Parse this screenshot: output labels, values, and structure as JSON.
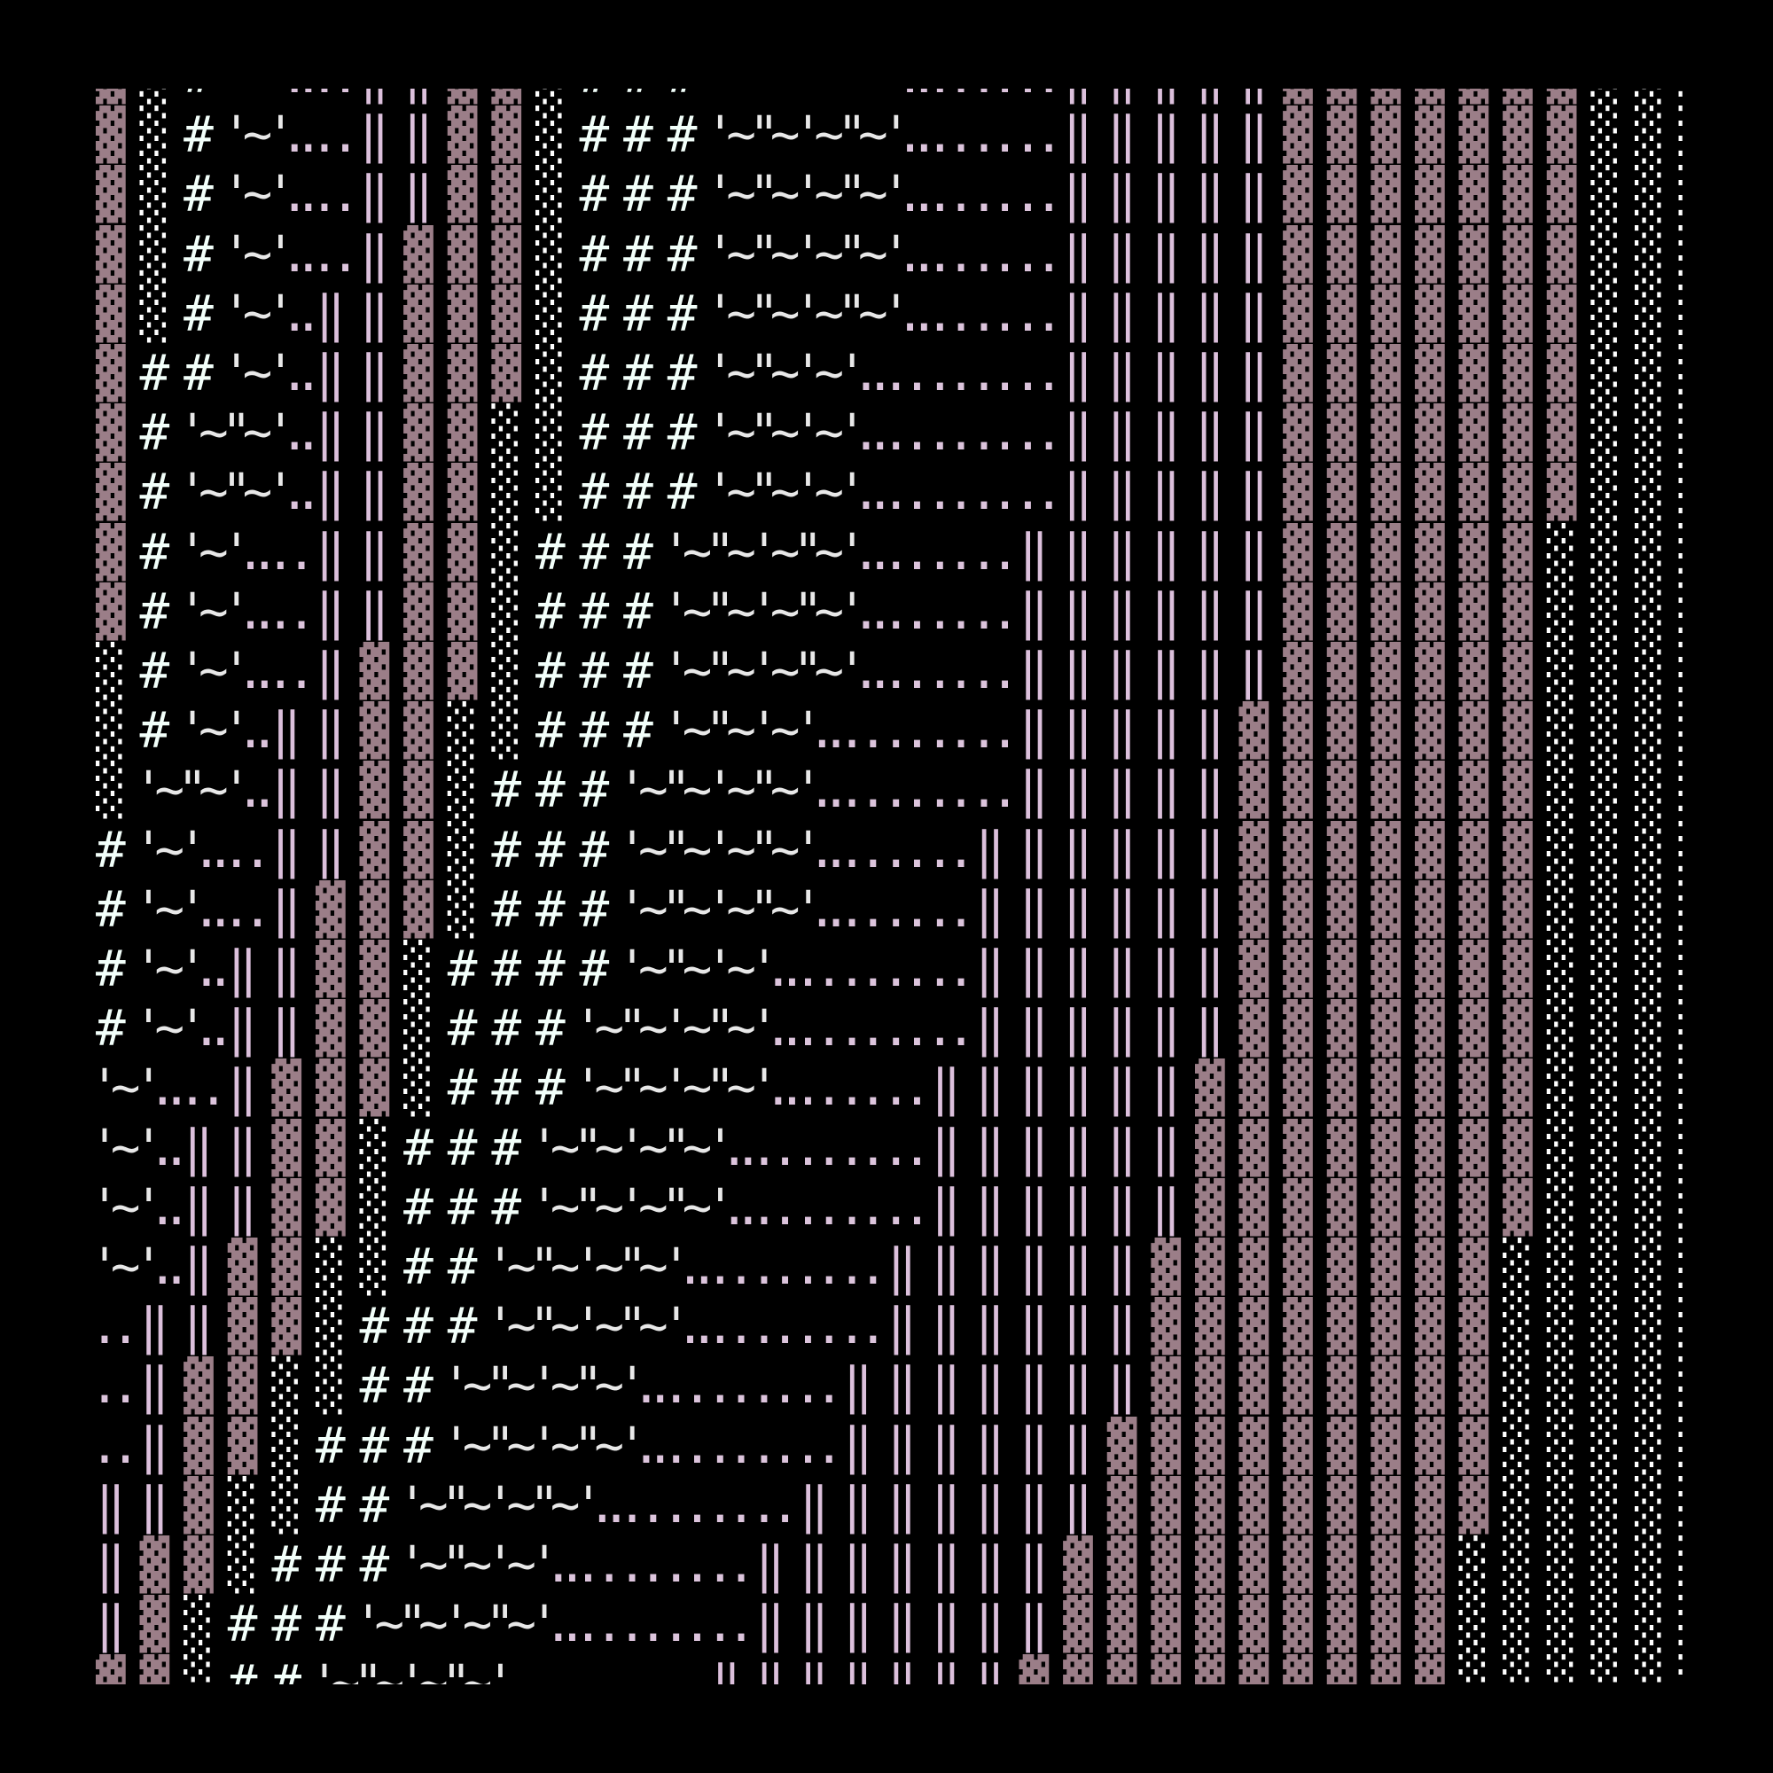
{
  "colors": {
    "background": "#000000",
    "dark_shade": "#9b7e88",
    "light_shade": "#ffffff",
    "hash": "#f2fffa",
    "tick": "#e8e8e8",
    "dots": "#dcc4dc",
    "double_bar": "#dcc0dc"
  },
  "rows": [
    "▓ ░ # '~ '.. .. ‖ ‖ ▓ ▓ ░ # # # '~ \"~ '~ \"~ '.. .. .. .. ‖ ‖ ‖ ‖ ‖ ▓ ▓ ▓ ▓ ▓ ▓ ▓ ░ ░ ░",
    "▓ ░ # '~ '.. .. ‖ ‖ ▓ ▓ ░ # # # '~ \"~ '~ \"~ '.. .. .. .. ‖ ‖ ‖ ‖ ‖ ▓ ▓ ▓ ▓ ▓ ▓ ▓ ░ ░ ░",
    "▓ ░ # '~ '.. .. ‖ ‖ ▓ ▓ ░ # # # '~ \"~ '~ \"~ '.. .. .. .. ‖ ‖ ‖ ‖ ‖ ▓ ▓ ▓ ▓ ▓ ▓ ▓ ░ ░ ░",
    "▓ ░ # '~ '.. .. ‖ ▓ ▓ ▓ ░ # # # '~ \"~ '~ \"~ '.. .. .. .. ‖ ‖ ‖ ‖ ‖ ▓ ▓ ▓ ▓ ▓ ▓ ▓ ░ ░ ░",
    "▓ ░ # '~ '.. ‖ ‖ ▓ ▓ ▓ ░ # # # '~ \"~ '~ \"~ '.. .. .. .. ‖ ‖ ‖ ‖ ‖ ▓ ▓ ▓ ▓ ▓ ▓ ▓ ░ ░ ░",
    "▓ # # '~ '.. ‖ ‖ ▓ ▓ ▓ ░ # # # '~ \"~ '~ '.. .. .. .. .. ‖ ‖ ‖ ‖ ‖ ▓ ▓ ▓ ▓ ▓ ▓ ▓ ░ ░ ░",
    "▓ # '~ \"~ '.. ‖ ‖ ▓ ▓ ░ ░ # # # '~ \"~ '~ '.. .. .. .. .. ‖ ‖ ‖ ‖ ‖ ▓ ▓ ▓ ▓ ▓ ▓ ▓ ░ ░ ░",
    "▓ # '~ \"~ '.. ‖ ‖ ▓ ▓ ░ ░ # # # '~ \"~ '~ '.. .. .. .. .. ‖ ‖ ‖ ‖ ‖ ▓ ▓ ▓ ▓ ▓ ▓ ▓ ░ ░ ░",
    "▓ # '~ '.. .. ‖ ‖ ▓ ▓ ░ # # # '~ \"~ '~ \"~ '.. .. .. .. ‖ ‖ ‖ ‖ ‖ ‖ ▓ ▓ ▓ ▓ ▓ ▓ ░ ░ ░ ░",
    "▓ # '~ '.. .. ‖ ‖ ▓ ▓ ░ # # # '~ \"~ '~ \"~ '.. .. .. .. ‖ ‖ ‖ ‖ ‖ ‖ ▓ ▓ ▓ ▓ ▓ ▓ ░ ░ ░ ░",
    "░ # '~ '.. .. ‖ ▓ ▓ ▓ ░ # # # '~ \"~ '~ \"~ '.. .. .. .. ‖ ‖ ‖ ‖ ‖ ‖ ▓ ▓ ▓ ▓ ▓ ▓ ░ ░ ░ ░",
    "░ # '~ '.. ‖ ‖ ▓ ▓ ░ ░ # # # '~ \"~ '~ '.. .. .. .. .. ‖ ‖ ‖ ‖ ‖ ▓ ▓ ▓ ▓ ▓ ▓ ▓ ░ ░ ░ ░",
    "░ '~ \"~ '.. ‖ ‖ ▓ ▓ ░ # # # '~ \"~ '~ \"~ '.. .. .. .. .. ‖ ‖ ‖ ‖ ‖ ▓ ▓ ▓ ▓ ▓ ▓ ▓ ░ ░ ░ ░",
    "# '~ '.. .. ‖ ‖ ▓ ▓ ░ # # # '~ \"~ '~ \"~ '.. .. .. .. ‖ ‖ ‖ ‖ ‖ ‖ ▓ ▓ ▓ ▓ ▓ ▓ ▓ ░ ░ ░ ░",
    "# '~ '.. .. ‖ ▓ ▓ ▓ ░ # # # '~ \"~ '~ \"~ '.. .. .. .. ‖ ‖ ‖ ‖ ‖ ‖ ▓ ▓ ▓ ▓ ▓ ▓ ▓ ░ ░ ░ ░",
    "# '~ '.. ‖ ‖ ▓ ▓ ░ # # # # '~ \"~ '~ '.. .. .. .. .. ‖ ‖ ‖ ‖ ‖ ‖ ▓ ▓ ▓ ▓ ▓ ▓ ▓ ░ ░ ░ ░",
    "# '~ '.. ‖ ‖ ▓ ▓ ░ # # # '~ \"~ '~ \"~ '.. .. .. .. .. ‖ ‖ ‖ ‖ ‖ ‖ ▓ ▓ ▓ ▓ ▓ ▓ ▓ ░ ░ ░ ░",
    "'~ '.. .. ‖ ▓ ▓ ▓ ░ # # # '~ \"~ '~ \"~ '.. .. .. .. ‖ ‖ ‖ ‖ ‖ ‖ ▓ ▓ ▓ ▓ ▓ ▓ ▓ ▓ ░ ░ ░ ░",
    "'~ '.. ‖ ‖ ▓ ▓ ░ # # # '~ \"~ '~ \"~ '.. .. .. .. .. ‖ ‖ ‖ ‖ ‖ ‖ ▓ ▓ ▓ ▓ ▓ ▓ ▓ ▓ ░ ░ ░ ░",
    "'~ '.. ‖ ‖ ▓ ▓ ░ # # # '~ \"~ '~ \"~ '.. .. .. .. .. ‖ ‖ ‖ ‖ ‖ ‖ ▓ ▓ ▓ ▓ ▓ ▓ ▓ ▓ ░ ░ ░ ░",
    "'~ '.. ‖ ▓ ▓ ░ ░ # # '~ \"~ '~ \"~ '.. .. .. .. .. ‖ ‖ ‖ ‖ ‖ ‖ ▓ ▓ ▓ ▓ ▓ ▓ ▓ ▓ ░ ░ ░ ░ ░",
    ".. ‖ ‖ ▓ ▓ ░ # # # '~ \"~ '~ \"~ '.. .. .. .. .. ‖ ‖ ‖ ‖ ‖ ‖ ▓ ▓ ▓ ▓ ▓ ▓ ▓ ▓ ░ ░ ░ ░ ░",
    ".. ‖ ▓ ▓ ░ ░ # # '~ \"~ '~ \"~ '.. .. .. .. .. ‖ ‖ ‖ ‖ ‖ ‖ ‖ ▓ ▓ ▓ ▓ ▓ ▓ ▓ ▓ ░ ░ ░ ░ ░",
    ".. ‖ ▓ ▓ ░ # # # '~ \"~ '~ \"~ '.. .. .. .. .. ‖ ‖ ‖ ‖ ‖ ‖ ▓ ▓ ▓ ▓ ▓ ▓ ▓ ▓ ▓ ░ ░ ░ ░ ░",
    "‖ ‖ ▓ ░ ░ # # '~ \"~ '~ \"~ '.. .. .. .. .. ‖ ‖ ‖ ‖ ‖ ‖ ‖ ▓ ▓ ▓ ▓ ▓ ▓ ▓ ▓ ▓ ░ ░ ░ ░ ░",
    "‖ ▓ ▓ ░ # # # '~ \"~ '~ '.. .. .. .. .. ‖ ‖ ‖ ‖ ‖ ‖ ‖ ▓ ▓ ▓ ▓ ▓ ▓ ▓ ▓ ▓ ░ ░ ░ ░ ░ ░",
    "‖ ▓ ░ # # # '~ \"~ '~ \"~ '.. .. .. .. .. ‖ ‖ ‖ ‖ ‖ ‖ ‖ ▓ ▓ ▓ ▓ ▓ ▓ ▓ ▓ ▓ ░ ░ ░ ░ ░ ░",
    "▓ ▓ ░ # # '~ \"~ '~ \"~ '.. .. .. .. .. ‖ ‖ ‖ ‖ ‖ ‖ ‖ ▓ ▓ ▓ ▓ ▓ ▓ ▓ ▓ ▓ ▓ ░ ░ ░ ░ ░ ░"
  ]
}
